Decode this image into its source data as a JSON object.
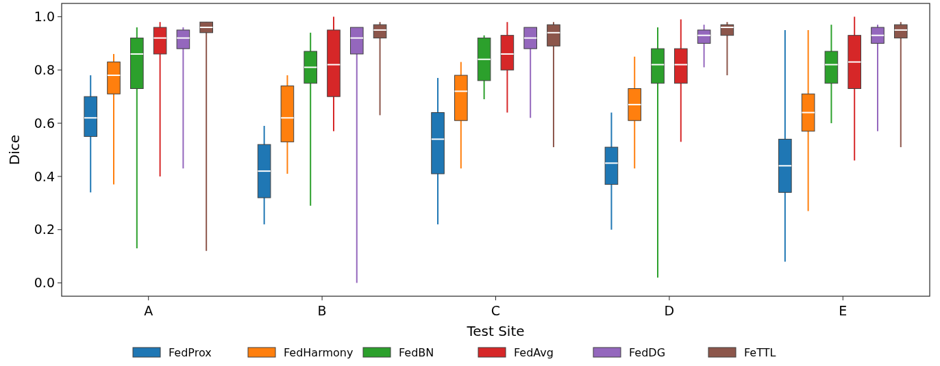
{
  "chart_data": {
    "type": "box",
    "xlabel": "Test Site",
    "ylabel": "Dice",
    "categories": [
      "A",
      "B",
      "C",
      "D",
      "E"
    ],
    "ylim": [
      -0.05,
      1.05
    ],
    "yticks": [
      {
        "value": 0,
        "label": "0.0"
      },
      {
        "value": 0.2,
        "label": "0.2"
      },
      {
        "value": 0.4,
        "label": "0.4"
      },
      {
        "value": 0.6,
        "label": "0.6"
      },
      {
        "value": 0.8,
        "label": "0.8"
      },
      {
        "value": 1,
        "label": "1.0"
      }
    ],
    "legend": "bottom",
    "series": [
      {
        "name": "FedProx",
        "color": "#1f77b4",
        "boxes": [
          {
            "low": 0.34,
            "q1": 0.55,
            "median": 0.62,
            "q3": 0.7,
            "high": 0.78
          },
          {
            "low": 0.22,
            "q1": 0.32,
            "median": 0.42,
            "q3": 0.52,
            "high": 0.59
          },
          {
            "low": 0.22,
            "q1": 0.41,
            "median": 0.54,
            "q3": 0.64,
            "high": 0.77
          },
          {
            "low": 0.2,
            "q1": 0.37,
            "median": 0.45,
            "q3": 0.51,
            "high": 0.64
          },
          {
            "low": 0.08,
            "q1": 0.34,
            "median": 0.44,
            "q3": 0.54,
            "high": 0.95
          }
        ]
      },
      {
        "name": "FedHarmony",
        "color": "#ff7f0e",
        "boxes": [
          {
            "low": 0.37,
            "q1": 0.71,
            "median": 0.78,
            "q3": 0.83,
            "high": 0.86
          },
          {
            "low": 0.41,
            "q1": 0.53,
            "median": 0.62,
            "q3": 0.74,
            "high": 0.78
          },
          {
            "low": 0.43,
            "q1": 0.61,
            "median": 0.72,
            "q3": 0.78,
            "high": 0.83
          },
          {
            "low": 0.43,
            "q1": 0.61,
            "median": 0.67,
            "q3": 0.73,
            "high": 0.85
          },
          {
            "low": 0.27,
            "q1": 0.57,
            "median": 0.64,
            "q3": 0.71,
            "high": 0.95
          }
        ]
      },
      {
        "name": "FedBN",
        "color": "#2ca02c",
        "boxes": [
          {
            "low": 0.13,
            "q1": 0.73,
            "median": 0.86,
            "q3": 0.92,
            "high": 0.96
          },
          {
            "low": 0.29,
            "q1": 0.75,
            "median": 0.81,
            "q3": 0.87,
            "high": 0.94
          },
          {
            "low": 0.69,
            "q1": 0.76,
            "median": 0.84,
            "q3": 0.92,
            "high": 0.93
          },
          {
            "low": 0.02,
            "q1": 0.75,
            "median": 0.82,
            "q3": 0.88,
            "high": 0.96
          },
          {
            "low": 0.6,
            "q1": 0.75,
            "median": 0.82,
            "q3": 0.87,
            "high": 0.97
          }
        ]
      },
      {
        "name": "FedAvg",
        "color": "#d62728",
        "boxes": [
          {
            "low": 0.4,
            "q1": 0.86,
            "median": 0.92,
            "q3": 0.96,
            "high": 0.98
          },
          {
            "low": 0.57,
            "q1": 0.7,
            "median": 0.82,
            "q3": 0.95,
            "high": 1.0
          },
          {
            "low": 0.64,
            "q1": 0.8,
            "median": 0.86,
            "q3": 0.93,
            "high": 0.98
          },
          {
            "low": 0.53,
            "q1": 0.75,
            "median": 0.82,
            "q3": 0.88,
            "high": 0.99
          },
          {
            "low": 0.46,
            "q1": 0.73,
            "median": 0.83,
            "q3": 0.93,
            "high": 1.0
          }
        ]
      },
      {
        "name": "FedDG",
        "color": "#9467bd",
        "boxes": [
          {
            "low": 0.43,
            "q1": 0.88,
            "median": 0.92,
            "q3": 0.95,
            "high": 0.96
          },
          {
            "low": 0.0,
            "q1": 0.86,
            "median": 0.92,
            "q3": 0.96,
            "high": 0.96
          },
          {
            "low": 0.62,
            "q1": 0.88,
            "median": 0.92,
            "q3": 0.96,
            "high": 0.96
          },
          {
            "low": 0.81,
            "q1": 0.9,
            "median": 0.93,
            "q3": 0.95,
            "high": 0.97
          },
          {
            "low": 0.57,
            "q1": 0.9,
            "median": 0.93,
            "q3": 0.96,
            "high": 0.97
          }
        ]
      },
      {
        "name": "FeTTL",
        "color": "#8c564b",
        "boxes": [
          {
            "low": 0.12,
            "q1": 0.94,
            "median": 0.96,
            "q3": 0.98,
            "high": 0.98
          },
          {
            "low": 0.63,
            "q1": 0.92,
            "median": 0.95,
            "q3": 0.97,
            "high": 0.98
          },
          {
            "low": 0.51,
            "q1": 0.89,
            "median": 0.94,
            "q3": 0.97,
            "high": 0.98
          },
          {
            "low": 0.78,
            "q1": 0.93,
            "median": 0.96,
            "q3": 0.97,
            "high": 0.98
          },
          {
            "low": 0.51,
            "q1": 0.92,
            "median": 0.95,
            "q3": 0.97,
            "high": 0.98
          }
        ]
      }
    ]
  }
}
